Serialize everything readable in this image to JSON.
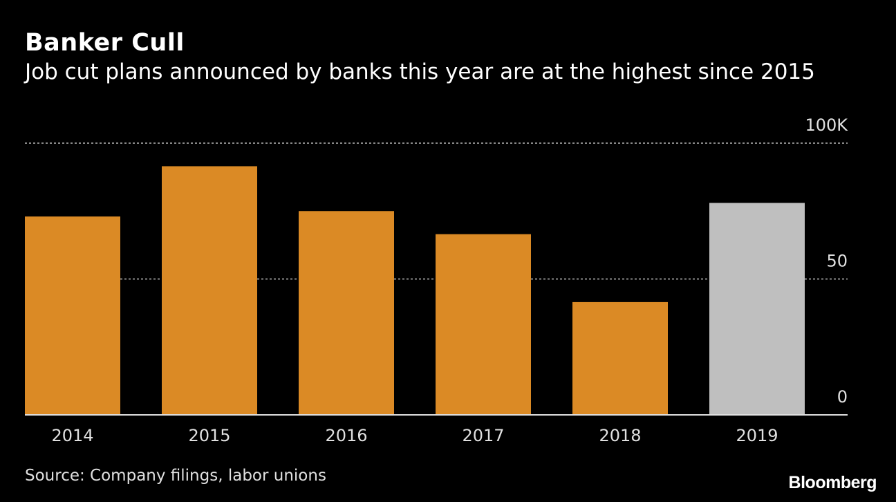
{
  "chart_data": {
    "type": "bar",
    "title": "Banker Cull",
    "subtitle": "Job cut plans announced by banks this year are at the highest since 2015",
    "categories": [
      "2014",
      "2015",
      "2016",
      "2017",
      "2018",
      "2019"
    ],
    "values": [
      73,
      91.5,
      75,
      66.5,
      41.5,
      78
    ],
    "ylim": [
      0,
      100
    ],
    "yticks": [
      {
        "value": 0,
        "label": "0"
      },
      {
        "value": 50,
        "label": "50"
      },
      {
        "value": 100,
        "label": "100K"
      }
    ],
    "grid": true,
    "colors": {
      "default": "#DB8A25",
      "highlight": "#BFBFBF",
      "highlight_category": "2019",
      "background": "#000000",
      "grid": "#8a8a8a"
    },
    "source": "Source: Company filings, labor unions"
  },
  "branding": {
    "logo": "Bloomberg"
  }
}
